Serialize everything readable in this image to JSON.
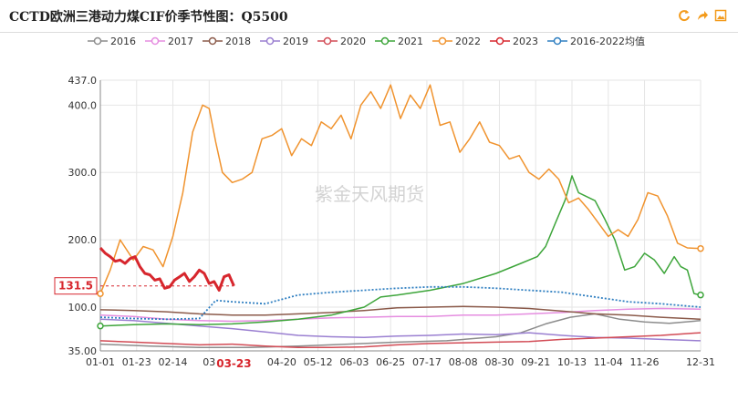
{
  "title": "CCTD欧洲三港动力煤CIF价季节性图：Q5500",
  "toolbar": {
    "refresh": "refresh-icon",
    "share": "share-icon",
    "save": "save-image-icon"
  },
  "watermark": "紫金天风期货",
  "callout": {
    "value": "131.5",
    "date": "03-23"
  },
  "colors": {
    "2016": "#8c8c8c",
    "2017": "#e58de0",
    "2018": "#8b5a4a",
    "2019": "#9a7fd1",
    "2020": "#d24b55",
    "2021": "#3da53a",
    "2022": "#f0932e",
    "2023": "#d7262d",
    "avg": "#2f7fc1"
  },
  "chart_data": {
    "type": "line",
    "title": "CCTD欧洲三港动力煤CIF价季节性图：Q5500",
    "xlabel": "",
    "ylabel": "",
    "ylim": [
      35,
      437
    ],
    "y_ticks": [
      "35.00",
      "100.0",
      "200.0",
      "300.0",
      "400.0",
      "437.0"
    ],
    "y_tick_values": [
      35,
      100,
      200,
      300,
      400,
      437
    ],
    "x_ticks": [
      "01-01",
      "01-23",
      "02-14",
      "03",
      "04-20",
      "05-12",
      "06-03",
      "06-25",
      "07-17",
      "08-08",
      "08-30",
      "09-21",
      "10-13",
      "11-04",
      "11-26",
      "12-31"
    ],
    "x_tick_days": [
      0,
      22,
      44,
      66,
      110,
      132,
      154,
      176,
      198,
      220,
      242,
      264,
      286,
      308,
      330,
      364
    ],
    "legend": [
      "2016",
      "2017",
      "2018",
      "2019",
      "2020",
      "2021",
      "2022",
      "2023",
      "2016-2022均值"
    ],
    "series": [
      {
        "name": "2016",
        "key": "2016",
        "style": "solid",
        "marker": false,
        "x": [
          0,
          30,
          60,
          90,
          120,
          150,
          180,
          210,
          240,
          255,
          270,
          285,
          300,
          315,
          330,
          345,
          364
        ],
        "y": [
          45,
          42,
          40,
          40,
          42,
          45,
          48,
          50,
          56,
          62,
          75,
          85,
          90,
          82,
          78,
          76,
          80
        ]
      },
      {
        "name": "2017",
        "key": "2017",
        "style": "solid",
        "marker": false,
        "x": [
          0,
          20,
          40,
          60,
          80,
          100,
          120,
          140,
          160,
          180,
          200,
          220,
          240,
          260,
          280,
          300,
          320,
          340,
          364
        ],
        "y": [
          88,
          86,
          82,
          80,
          79,
          80,
          82,
          84,
          85,
          86,
          86,
          88,
          88,
          90,
          92,
          95,
          97,
          98,
          97
        ]
      },
      {
        "name": "2018",
        "key": "2018",
        "style": "solid",
        "marker": false,
        "x": [
          0,
          20,
          40,
          60,
          80,
          100,
          120,
          140,
          160,
          180,
          200,
          220,
          240,
          260,
          280,
          300,
          320,
          340,
          364
        ],
        "y": [
          96,
          95,
          93,
          90,
          88,
          88,
          90,
          92,
          95,
          99,
          100,
          101,
          100,
          98,
          94,
          90,
          88,
          85,
          82
        ]
      },
      {
        "name": "2019",
        "key": "2019",
        "style": "solid",
        "marker": false,
        "x": [
          0,
          20,
          40,
          60,
          80,
          100,
          120,
          140,
          160,
          180,
          200,
          220,
          240,
          260,
          280,
          300,
          320,
          340,
          364
        ],
        "y": [
          82,
          80,
          76,
          72,
          68,
          63,
          58,
          56,
          55,
          57,
          58,
          60,
          59,
          62,
          58,
          55,
          54,
          52,
          50
        ]
      },
      {
        "name": "2020",
        "key": "2020",
        "style": "solid",
        "marker": false,
        "x": [
          0,
          20,
          40,
          60,
          80,
          100,
          120,
          140,
          160,
          180,
          200,
          220,
          240,
          260,
          280,
          300,
          320,
          340,
          364
        ],
        "y": [
          50,
          48,
          46,
          44,
          45,
          42,
          40,
          40,
          41,
          44,
          46,
          47,
          48,
          49,
          52,
          54,
          56,
          58,
          62
        ]
      },
      {
        "name": "2021",
        "key": "2021",
        "style": "solid",
        "marker": true,
        "x": [
          0,
          20,
          40,
          60,
          80,
          100,
          120,
          140,
          160,
          170,
          180,
          200,
          220,
          240,
          255,
          265,
          270,
          276,
          282,
          286,
          290,
          300,
          306,
          312,
          318,
          324,
          330,
          336,
          342,
          348,
          352,
          356,
          360,
          364
        ],
        "y": [
          72,
          74,
          75,
          74,
          75,
          78,
          82,
          88,
          100,
          115,
          118,
          125,
          135,
          150,
          165,
          175,
          190,
          225,
          260,
          295,
          270,
          258,
          230,
          200,
          155,
          160,
          180,
          170,
          150,
          175,
          160,
          155,
          120,
          118
        ]
      },
      {
        "name": "2022",
        "key": "2022",
        "style": "solid",
        "marker": true,
        "x": [
          0,
          6,
          12,
          20,
          26,
          32,
          38,
          44,
          50,
          56,
          62,
          66,
          70,
          74,
          80,
          86,
          92,
          98,
          104,
          110,
          116,
          122,
          128,
          134,
          140,
          146,
          152,
          158,
          164,
          170,
          176,
          182,
          188,
          194,
          200,
          206,
          212,
          218,
          224,
          230,
          236,
          242,
          248,
          254,
          260,
          266,
          272,
          278,
          284,
          290,
          296,
          302,
          308,
          314,
          320,
          326,
          332,
          338,
          344,
          350,
          356,
          364
        ],
        "y": [
          120,
          155,
          200,
          170,
          190,
          185,
          160,
          205,
          270,
          360,
          400,
          395,
          345,
          300,
          285,
          290,
          300,
          350,
          355,
          365,
          325,
          350,
          340,
          375,
          365,
          385,
          350,
          400,
          420,
          395,
          430,
          380,
          415,
          395,
          430,
          370,
          375,
          330,
          350,
          375,
          345,
          340,
          320,
          325,
          300,
          290,
          305,
          290,
          255,
          262,
          245,
          225,
          205,
          215,
          205,
          230,
          270,
          265,
          235,
          195,
          188,
          187
        ]
      },
      {
        "name": "2023",
        "key": "2023",
        "style": "solid",
        "marker": false,
        "bold": true,
        "x": [
          0,
          3,
          6,
          9,
          12,
          15,
          18,
          21,
          24,
          27,
          30,
          33,
          36,
          39,
          42,
          45,
          48,
          51,
          54,
          57,
          60,
          63,
          66,
          69,
          72,
          75,
          78,
          81
        ],
        "y": [
          188,
          180,
          175,
          168,
          170,
          165,
          172,
          175,
          160,
          150,
          148,
          140,
          142,
          128,
          130,
          140,
          145,
          150,
          138,
          145,
          155,
          150,
          135,
          138,
          125,
          145,
          148,
          131.5
        ]
      },
      {
        "name": "2016-2022均值",
        "key": "avg",
        "style": "dotted",
        "marker": false,
        "x": [
          0,
          20,
          40,
          60,
          70,
          80,
          100,
          120,
          140,
          160,
          180,
          200,
          220,
          240,
          260,
          280,
          300,
          320,
          340,
          364
        ],
        "y": [
          85,
          83,
          82,
          83,
          110,
          108,
          105,
          118,
          122,
          125,
          128,
          130,
          130,
          128,
          125,
          122,
          115,
          108,
          105,
          100
        ]
      }
    ]
  }
}
